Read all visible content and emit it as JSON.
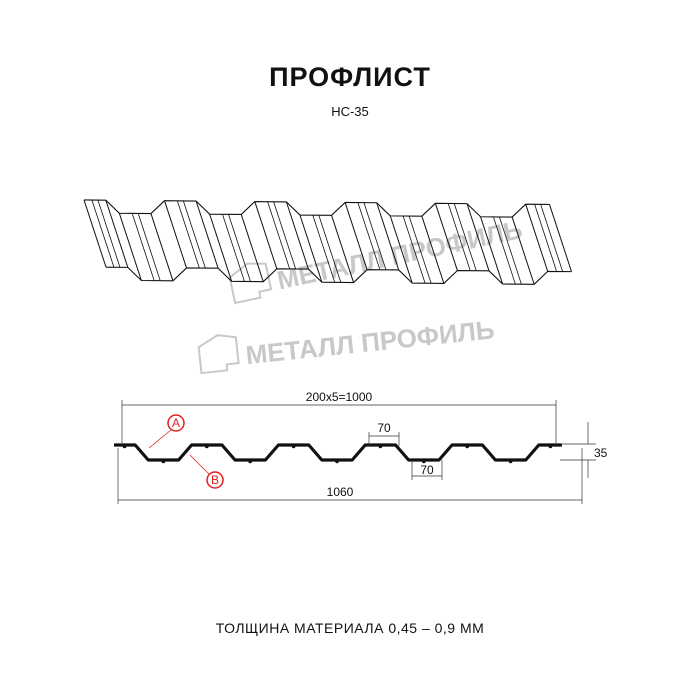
{
  "header": {
    "title": "ПРОФЛИСТ",
    "subtitle": "НС-35"
  },
  "watermark": {
    "text": "МЕТАЛЛ ПРОФИЛЬ",
    "color": "#c8c8c8"
  },
  "profile": {
    "dimensions": {
      "pitch_total": "200x5=1000",
      "top_width": "70",
      "bottom_width": "70",
      "height": "35",
      "full_width": "1060"
    },
    "markers": [
      {
        "label": "A"
      },
      {
        "label": "B"
      }
    ],
    "marker_color": "#e02020",
    "line_color": "#111111"
  },
  "footer": {
    "thickness": "ТОЛЩИНА МАТЕРИАЛА 0,45 – 0,9 ММ"
  }
}
